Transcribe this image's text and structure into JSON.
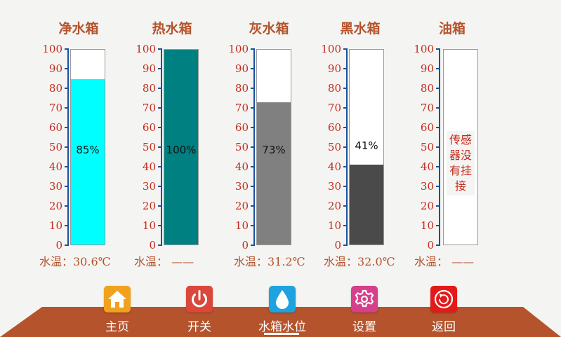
{
  "tanks": [
    {
      "title": "净水箱",
      "level": 85,
      "level_label": "85%",
      "fill_color": "#00ffff",
      "temp": "水温：30.6℃"
    },
    {
      "title": "热水箱",
      "level": 100,
      "level_label": "100%",
      "fill_color": "#008080",
      "temp": "水温：  ——"
    },
    {
      "title": "灰水箱",
      "level": 73,
      "level_label": "73%",
      "fill_color": "#808080",
      "temp": "水温：31.2℃"
    },
    {
      "title": "黑水箱",
      "level": 41,
      "level_label": "41%",
      "fill_color": "#4a4a4a",
      "temp": "水温：32.0℃"
    },
    {
      "title": "油箱",
      "level": 0,
      "level_label": "",
      "fill_color": "#ffffff",
      "sensor_text": "传感器没有挂接",
      "temp": "水温：  ——"
    }
  ],
  "scale_labels": [
    "100",
    "90",
    "80",
    "70",
    "60",
    "50",
    "40",
    "30",
    "20",
    "10",
    "0"
  ],
  "nav": {
    "items": [
      {
        "label": "主页",
        "icon": "home-icon",
        "color": "#f0a21f"
      },
      {
        "label": "开关",
        "icon": "power-icon",
        "color": "#d9483b"
      },
      {
        "label": "水箱水位",
        "icon": "water-drop-icon",
        "color": "#1fa3e0"
      },
      {
        "label": "设置",
        "icon": "gear-icon",
        "color": "#d63f8a"
      },
      {
        "label": "返回",
        "icon": "back-icon",
        "color": "#e21a1a"
      }
    ],
    "active": "水箱水位",
    "bar_color": "#b5532c"
  }
}
